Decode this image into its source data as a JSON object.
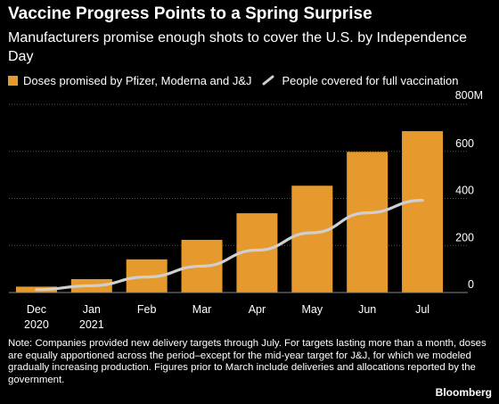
{
  "title": "Vaccine Progress Points to a Spring Surprise",
  "subtitle": "Manufacturers promise enough shots to cover the U.S. by Independence Day",
  "legend": {
    "bars_label": "Doses promised by Pfizer, Moderna and J&J",
    "line_label": "People covered for full vaccination"
  },
  "note": "Note: Companies provided new delivery targets through July. For targets lasting more than a month, doses are equally apportioned across the period–except for the mid-year target for J&J, for which we modeled gradually increasing production. Figures prior to March include deliveries and allocations reported by the government.",
  "brand": "Bloomberg",
  "colors": {
    "bars": "#e69a2e",
    "line": "#cfcfcf",
    "grid": "#555555",
    "background": "#000000"
  },
  "chart_data": {
    "type": "bar",
    "categories": [
      "Dec 2020",
      "Jan 2021",
      "Feb",
      "Mar",
      "Apr",
      "May",
      "Jun",
      "Jul"
    ],
    "x_tick_labels": [
      [
        "Dec",
        "2020"
      ],
      [
        "Jan",
        "2021"
      ],
      [
        "Feb"
      ],
      [
        "Mar"
      ],
      [
        "Apr"
      ],
      [
        "May"
      ],
      [
        "Jun"
      ],
      [
        "Jul"
      ]
    ],
    "series": [
      {
        "name": "Doses promised by Pfizer, Moderna and J&J",
        "type": "bar",
        "values": [
          25,
          57,
          141,
          224,
          337,
          454,
          598,
          686
        ]
      },
      {
        "name": "People covered for full vaccination",
        "type": "line",
        "values": [
          12,
          29,
          66,
          112,
          180,
          254,
          339,
          392
        ]
      }
    ],
    "y_ticks": [
      0,
      200,
      400,
      600
    ],
    "y_top_label": "800M",
    "ylim": [
      0,
      800
    ],
    "grid": true,
    "y_axis_side": "right"
  }
}
